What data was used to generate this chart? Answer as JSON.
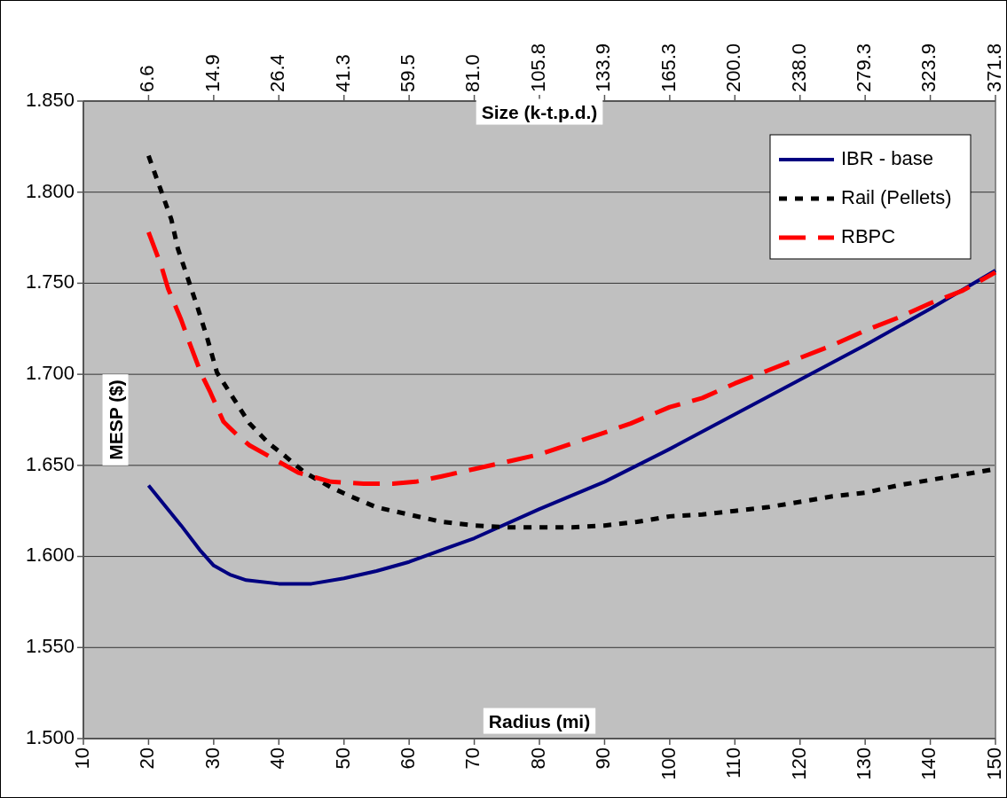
{
  "chart_data": {
    "type": "line",
    "xlabel": "Radius (mi)",
    "x2label": "Size (k-t.p.d.)",
    "ylabel": "MESP ($)",
    "xlim": [
      10,
      150
    ],
    "xticks": [
      10,
      20,
      30,
      40,
      50,
      60,
      70,
      80,
      90,
      100,
      110,
      120,
      130,
      140,
      150
    ],
    "annotations": [
      {
        "text": "6.6",
        "x": 20
      },
      {
        "text": "14.9",
        "x": 30
      },
      {
        "text": "26.4",
        "x": 40
      },
      {
        "text": "41.3",
        "x": 50
      },
      {
        "text": "59.5",
        "x": 60
      },
      {
        "text": "81.0",
        "x": 70
      },
      {
        "text": "105.8",
        "x": 80
      },
      {
        "text": "133.9",
        "x": 90
      },
      {
        "text": "165.3",
        "x": 100
      },
      {
        "text": "200.0",
        "x": 110
      },
      {
        "text": "238.0",
        "x": 120
      },
      {
        "text": "279.3",
        "x": 130
      },
      {
        "text": "323.9",
        "x": 140
      },
      {
        "text": "371.8",
        "x": 150
      }
    ],
    "ylim": [
      1.5,
      1.85
    ],
    "yticks": [
      {
        "value": 1.5,
        "label": "1.500"
      },
      {
        "value": 1.55,
        "label": "1.550"
      },
      {
        "value": 1.6,
        "label": "1.600"
      },
      {
        "value": 1.65,
        "label": "1.650"
      },
      {
        "value": 1.7,
        "label": "1.700"
      },
      {
        "value": 1.75,
        "label": "1.750"
      },
      {
        "value": 1.8,
        "label": "1.800"
      },
      {
        "value": 1.85,
        "label": "1.850"
      }
    ],
    "grid": "y",
    "legend": "top right",
    "marker": "none",
    "series": [
      {
        "name": "IBR - base",
        "color": "#000080",
        "line_style": "solid",
        "x": [
          20,
          25,
          28,
          30,
          32.5,
          35,
          40,
          45,
          50,
          55,
          60,
          70,
          80,
          90,
          100,
          110,
          120,
          130,
          140,
          150
        ],
        "values": [
          1.639,
          1.617,
          1.603,
          1.595,
          1.59,
          1.587,
          1.585,
          1.585,
          1.588,
          1.592,
          1.597,
          1.61,
          1.626,
          1.641,
          1.659,
          1.678,
          1.697,
          1.716,
          1.736,
          1.757
        ]
      },
      {
        "name": "Rail (Pellets)",
        "color": "#000000",
        "line_style": "dotted",
        "x": [
          20,
          22,
          23.5,
          24.5,
          26,
          27.5,
          29,
          30.5,
          33,
          35.5,
          38.5,
          41,
          44,
          48,
          51,
          55,
          60,
          65,
          70,
          75,
          80,
          85,
          90,
          95,
          100,
          105,
          110,
          115,
          120,
          125,
          130,
          135,
          140,
          145,
          150
        ],
        "values": [
          1.82,
          1.8,
          1.785,
          1.769,
          1.753,
          1.737,
          1.72,
          1.701,
          1.687,
          1.673,
          1.662,
          1.655,
          1.646,
          1.638,
          1.633,
          1.627,
          1.623,
          1.619,
          1.617,
          1.616,
          1.616,
          1.616,
          1.617,
          1.619,
          1.622,
          1.623,
          1.625,
          1.627,
          1.63,
          1.633,
          1.635,
          1.639,
          1.642,
          1.645,
          1.648
        ]
      },
      {
        "name": "RBPC",
        "color": "#ff0000",
        "line_style": "dashed",
        "x": [
          20,
          22,
          23,
          25,
          26,
          28,
          29.5,
          31.5,
          33.5,
          35.5,
          39.5,
          43,
          45,
          48,
          53,
          57.5,
          61,
          65,
          70,
          75,
          80,
          85,
          90,
          94,
          100,
          105,
          110,
          115,
          120,
          125,
          130,
          135,
          140,
          145,
          150
        ],
        "values": [
          1.778,
          1.759,
          1.747,
          1.73,
          1.72,
          1.701,
          1.69,
          1.674,
          1.667,
          1.661,
          1.653,
          1.646,
          1.644,
          1.641,
          1.64,
          1.64,
          1.641,
          1.644,
          1.648,
          1.652,
          1.656,
          1.662,
          1.668,
          1.673,
          1.682,
          1.687,
          1.695,
          1.702,
          1.709,
          1.716,
          1.724,
          1.731,
          1.739,
          1.746,
          1.756
        ]
      }
    ]
  }
}
